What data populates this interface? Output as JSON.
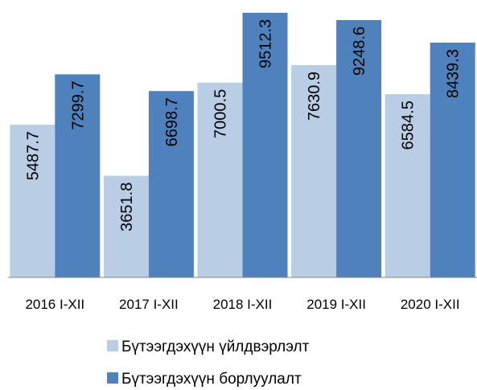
{
  "chart_data": {
    "type": "bar",
    "categories": [
      "2016 I-XII",
      "2017 I-XII",
      "2018 I-XII",
      "2019 I-XII",
      "2020 I-XII"
    ],
    "series": [
      {
        "name": "Бүтээгдэхүүн үйлдвэрлэлт",
        "color": "#b9cde5",
        "values": [
          5487.7,
          3651.8,
          7000.5,
          7630.9,
          6584.5
        ]
      },
      {
        "name": "Бүтээгдэхүүн борлуулалт",
        "color": "#4f81bd",
        "values": [
          7299.7,
          6698.7,
          9512.3,
          9248.6,
          8439.3
        ]
      }
    ],
    "ylim": [
      0,
      10000
    ],
    "legend": "bottom"
  }
}
